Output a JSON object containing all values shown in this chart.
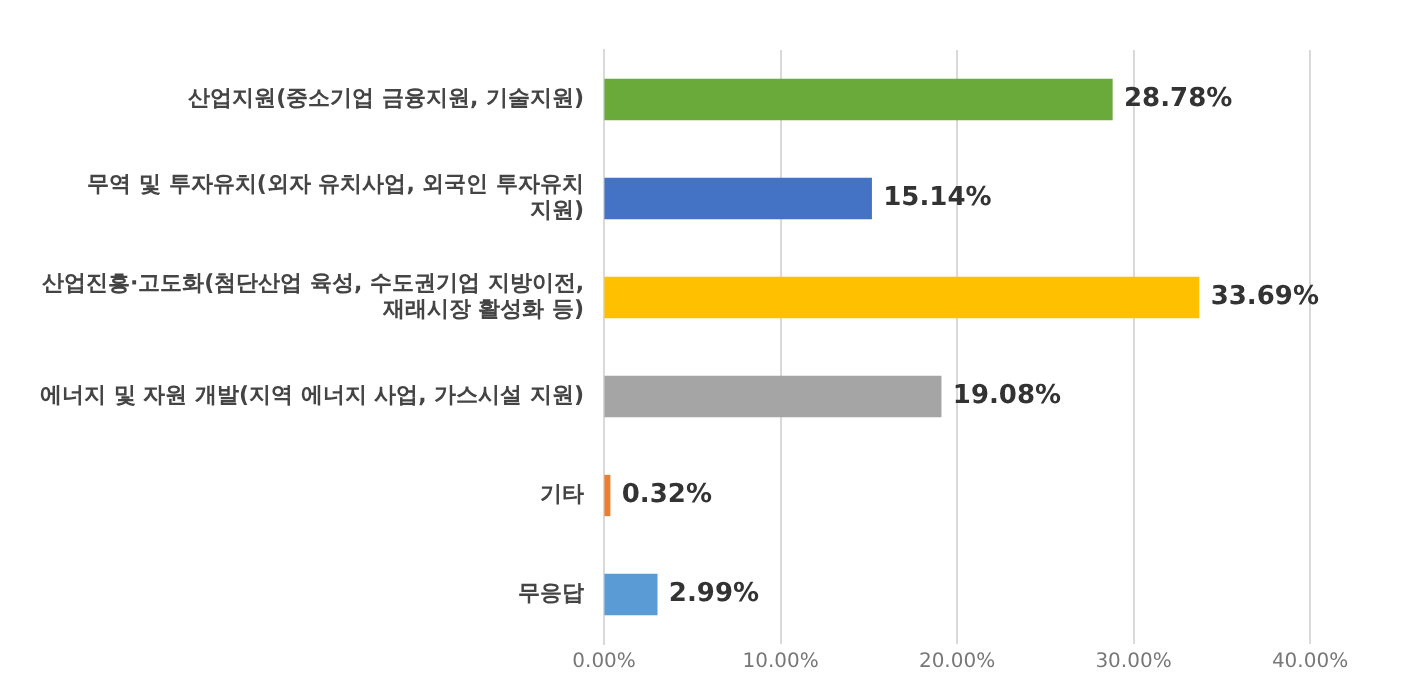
{
  "chart_data": {
    "type": "bar",
    "orientation": "horizontal",
    "categories": [
      "산업지원(중소기업 금융지원, 기술지원)",
      "무역 및 투자유치(외자 유치사업, 외국인 투자유치 지원)",
      "산업진흥·고도화(첨단산업 육성, 수도권기업 지방이전, 재래시장 활성화 등)",
      "에너지 및 자원 개발(지역 에너지 사업, 가스시설 지원)",
      "기타",
      "무응답"
    ],
    "values": [
      28.78,
      15.14,
      33.69,
      19.08,
      0.32,
      2.99
    ],
    "colors": [
      "#6aaa3a",
      "#4472c4",
      "#ffc000",
      "#a5a5a5",
      "#ed7d31",
      "#5b9bd5"
    ],
    "value_labels": [
      "28.78%",
      "15.14%",
      "33.69%",
      "19.08%",
      "0.32%",
      "2.99%"
    ],
    "xlim": [
      0,
      40
    ],
    "xticks": [
      {
        "value": 0,
        "label": "0.00%"
      },
      {
        "value": 10,
        "label": "10.00%"
      },
      {
        "value": 20,
        "label": "20.00%"
      },
      {
        "value": 30,
        "label": "30.00%"
      },
      {
        "value": 40,
        "label": "40.00%"
      }
    ],
    "grid": "x",
    "legend": false
  }
}
